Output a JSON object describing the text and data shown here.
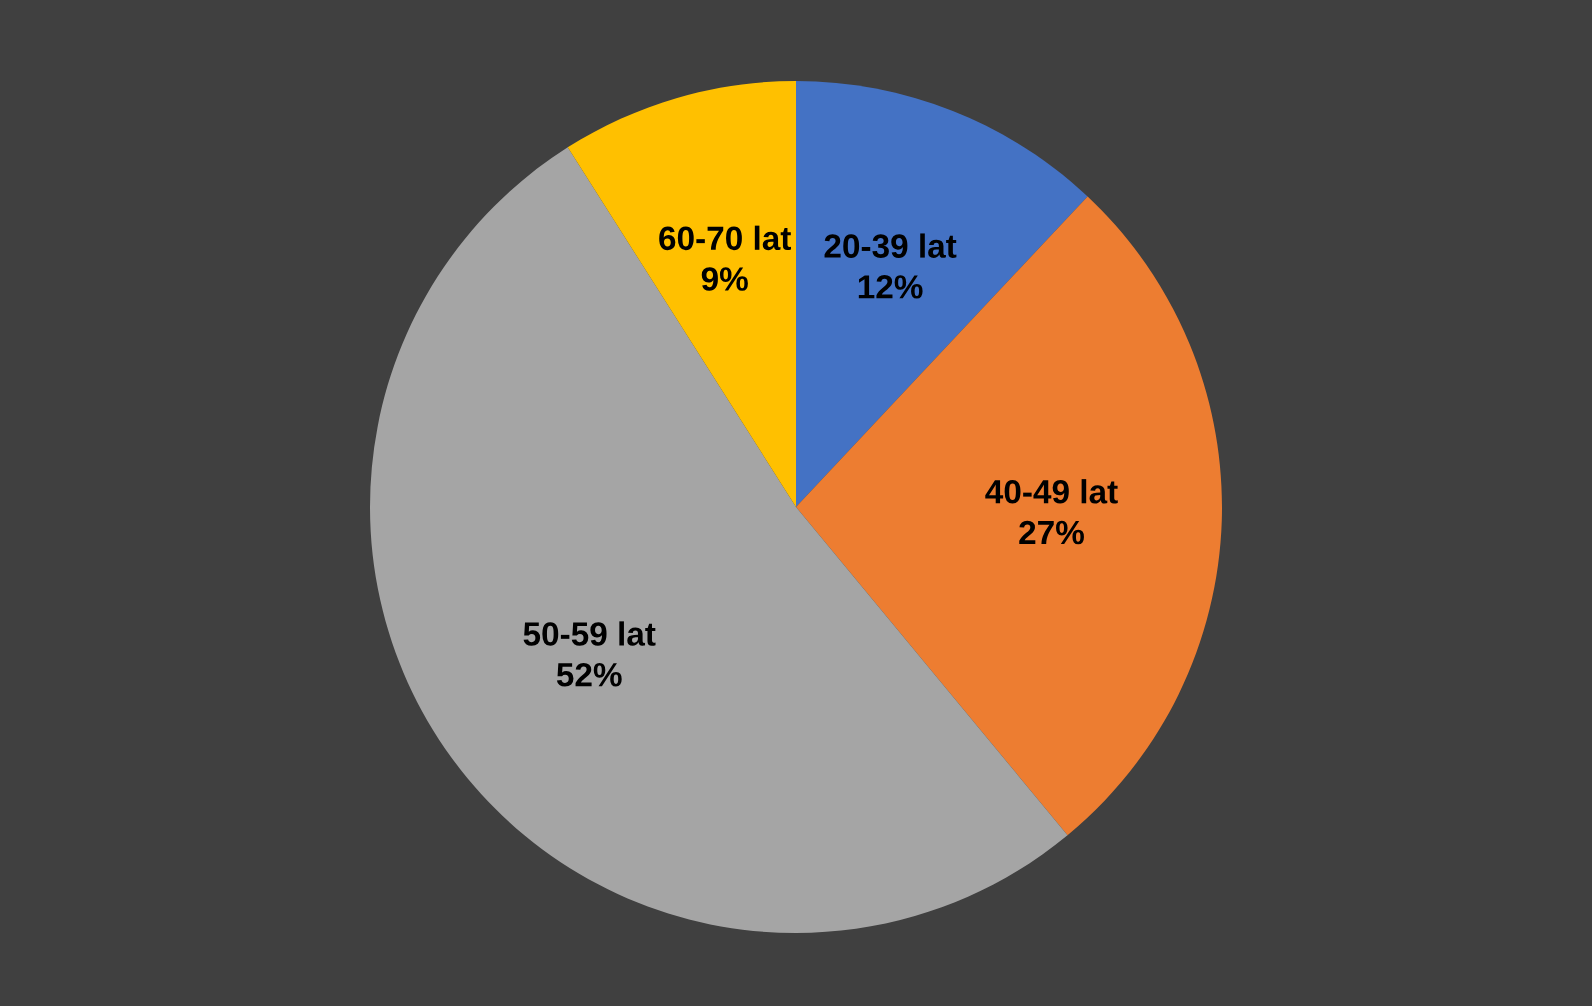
{
  "chart_data": {
    "type": "pie",
    "categories": [
      "20-39 lat",
      "40-49 lat",
      "50-59 lat",
      "60-70 lat"
    ],
    "values": [
      12,
      27,
      52,
      9
    ],
    "value_labels": [
      "12%",
      "27%",
      "52%",
      "9%"
    ],
    "colors": [
      "#4472c4",
      "#ed7d31",
      "#a5a5a5",
      "#ffc000"
    ],
    "legend": false
  }
}
